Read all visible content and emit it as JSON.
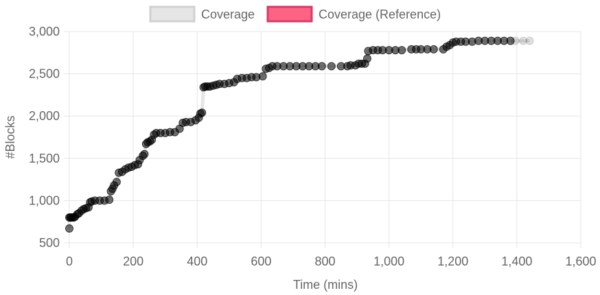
{
  "colors": {
    "coverage_fill": "#e6e6e6",
    "coverage_border": "#d0d0d0",
    "reference_fill": "#ff6384",
    "reference_border": "#d63a6a",
    "point_color": "#000000",
    "grid": "#e5e5e5",
    "axis_text": "#666666"
  },
  "chart_data": {
    "type": "scatter",
    "title": "",
    "xlabel": "Time (mins)",
    "ylabel": "#Blocks",
    "xlim": [
      0,
      1600
    ],
    "ylim": [
      500,
      3000
    ],
    "x_ticks": [
      0,
      200,
      400,
      600,
      800,
      1000,
      1200,
      1400,
      1600
    ],
    "x_tick_labels": [
      "0",
      "200",
      "400",
      "600",
      "800",
      "1,000",
      "1,200",
      "1,400",
      "1,600"
    ],
    "y_ticks": [
      500,
      1000,
      1500,
      2000,
      2500,
      3000
    ],
    "y_tick_labels": [
      "500",
      "1,000",
      "1,500",
      "2,000",
      "2,500",
      "3,000"
    ],
    "grid": true,
    "legend": {
      "placement": "top-center",
      "entries": [
        {
          "name": "Coverage",
          "color": "#e6e6e6"
        },
        {
          "name": "Coverage (Reference)",
          "color": "#ff6384"
        }
      ]
    },
    "series": [
      {
        "name": "Coverage",
        "points": [
          [
            0,
            670
          ],
          [
            0,
            800
          ],
          [
            3,
            800
          ],
          [
            6,
            800
          ],
          [
            10,
            800
          ],
          [
            14,
            800
          ],
          [
            18,
            810
          ],
          [
            25,
            840
          ],
          [
            30,
            850
          ],
          [
            38,
            880
          ],
          [
            45,
            900
          ],
          [
            52,
            910
          ],
          [
            60,
            920
          ],
          [
            65,
            980
          ],
          [
            70,
            990
          ],
          [
            80,
            1000
          ],
          [
            95,
            1000
          ],
          [
            110,
            1000
          ],
          [
            125,
            1010
          ],
          [
            130,
            1110
          ],
          [
            135,
            1140
          ],
          [
            140,
            1180
          ],
          [
            148,
            1220
          ],
          [
            155,
            1330
          ],
          [
            165,
            1340
          ],
          [
            175,
            1370
          ],
          [
            185,
            1390
          ],
          [
            195,
            1400
          ],
          [
            205,
            1420
          ],
          [
            215,
            1430
          ],
          [
            220,
            1480
          ],
          [
            230,
            1530
          ],
          [
            235,
            1550
          ],
          [
            240,
            1670
          ],
          [
            245,
            1690
          ],
          [
            252,
            1700
          ],
          [
            258,
            1720
          ],
          [
            265,
            1780
          ],
          [
            272,
            1800
          ],
          [
            285,
            1800
          ],
          [
            300,
            1800
          ],
          [
            315,
            1810
          ],
          [
            330,
            1810
          ],
          [
            345,
            1850
          ],
          [
            355,
            1920
          ],
          [
            365,
            1930
          ],
          [
            380,
            1930
          ],
          [
            395,
            1950
          ],
          [
            405,
            1980
          ],
          [
            410,
            2030
          ],
          [
            415,
            2040
          ],
          [
            420,
            2340
          ],
          [
            425,
            2350
          ],
          [
            432,
            2350
          ],
          [
            440,
            2350
          ],
          [
            450,
            2360
          ],
          [
            460,
            2370
          ],
          [
            470,
            2380
          ],
          [
            485,
            2380
          ],
          [
            500,
            2390
          ],
          [
            515,
            2400
          ],
          [
            525,
            2440
          ],
          [
            540,
            2450
          ],
          [
            555,
            2450
          ],
          [
            570,
            2460
          ],
          [
            585,
            2460
          ],
          [
            605,
            2470
          ],
          [
            615,
            2560
          ],
          [
            625,
            2570
          ],
          [
            635,
            2590
          ],
          [
            650,
            2590
          ],
          [
            670,
            2590
          ],
          [
            690,
            2590
          ],
          [
            710,
            2590
          ],
          [
            730,
            2590
          ],
          [
            750,
            2590
          ],
          [
            770,
            2590
          ],
          [
            790,
            2590
          ],
          [
            820,
            2590
          ],
          [
            850,
            2590
          ],
          [
            870,
            2590
          ],
          [
            880,
            2600
          ],
          [
            895,
            2600
          ],
          [
            905,
            2620
          ],
          [
            915,
            2620
          ],
          [
            925,
            2620
          ],
          [
            932,
            2680
          ],
          [
            935,
            2770
          ],
          [
            950,
            2780
          ],
          [
            965,
            2780
          ],
          [
            980,
            2780
          ],
          [
            1000,
            2780
          ],
          [
            1020,
            2780
          ],
          [
            1040,
            2780
          ],
          [
            1070,
            2790
          ],
          [
            1085,
            2790
          ],
          [
            1100,
            2790
          ],
          [
            1120,
            2790
          ],
          [
            1140,
            2790
          ],
          [
            1170,
            2790
          ],
          [
            1180,
            2820
          ],
          [
            1190,
            2840
          ],
          [
            1200,
            2870
          ],
          [
            1210,
            2880
          ],
          [
            1225,
            2880
          ],
          [
            1240,
            2880
          ],
          [
            1260,
            2880
          ],
          [
            1280,
            2890
          ],
          [
            1300,
            2890
          ],
          [
            1320,
            2890
          ],
          [
            1340,
            2890
          ],
          [
            1360,
            2890
          ],
          [
            1380,
            2890
          ],
          [
            1395,
            2890
          ],
          [
            1420,
            2890
          ],
          [
            1440,
            2890
          ]
        ]
      },
      {
        "name": "Coverage (Reference)",
        "points": []
      }
    ]
  }
}
